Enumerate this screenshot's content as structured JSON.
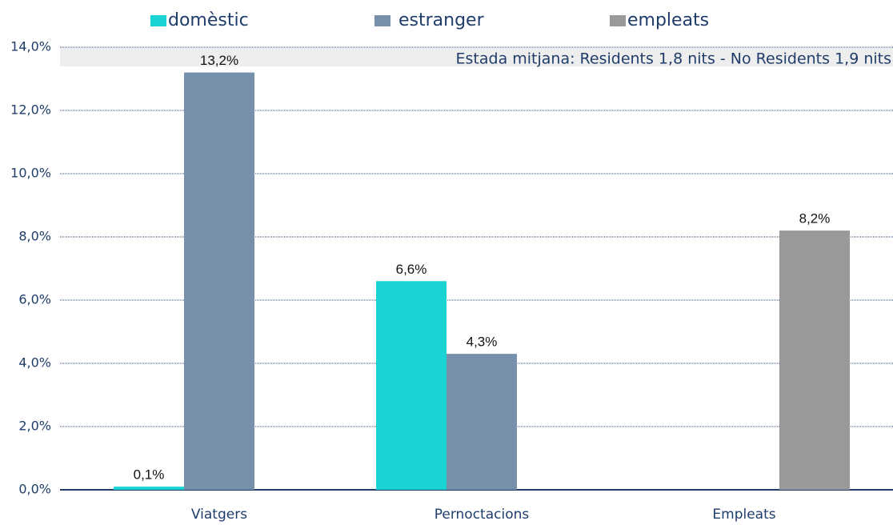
{
  "chart_data": {
    "type": "bar",
    "categories": [
      "Viatgers",
      "Pernoctacions",
      "Empleats"
    ],
    "series": [
      {
        "name": "domèstic",
        "color": "#1ad3d3",
        "values": [
          0.1,
          6.6,
          null
        ],
        "value_labels": [
          "0,1%",
          "6,6%",
          null
        ]
      },
      {
        "name": "estranger",
        "color": "#7690ab",
        "values": [
          13.2,
          4.3,
          null
        ],
        "value_labels": [
          "13,2%",
          "4,3%",
          null
        ]
      },
      {
        "name": "empleats",
        "color": "#999999",
        "values": [
          null,
          null,
          8.2
        ],
        "value_labels": [
          null,
          null,
          "8,2%"
        ]
      }
    ],
    "annotation": "Estada mitjana: Residents 1,8 nits - No Residents 1,9 nits",
    "ylim": [
      0,
      14
    ],
    "yticks": [
      {
        "value": 0,
        "label": "0,0%"
      },
      {
        "value": 2,
        "label": "2,0%"
      },
      {
        "value": 4,
        "label": "4,0%"
      },
      {
        "value": 6,
        "label": "6,0%"
      },
      {
        "value": 8,
        "label": "8,0%"
      },
      {
        "value": 10,
        "label": "10,0%"
      },
      {
        "value": 12,
        "label": "12,0%"
      },
      {
        "value": 14,
        "label": "14,0%"
      }
    ],
    "grid": true
  }
}
